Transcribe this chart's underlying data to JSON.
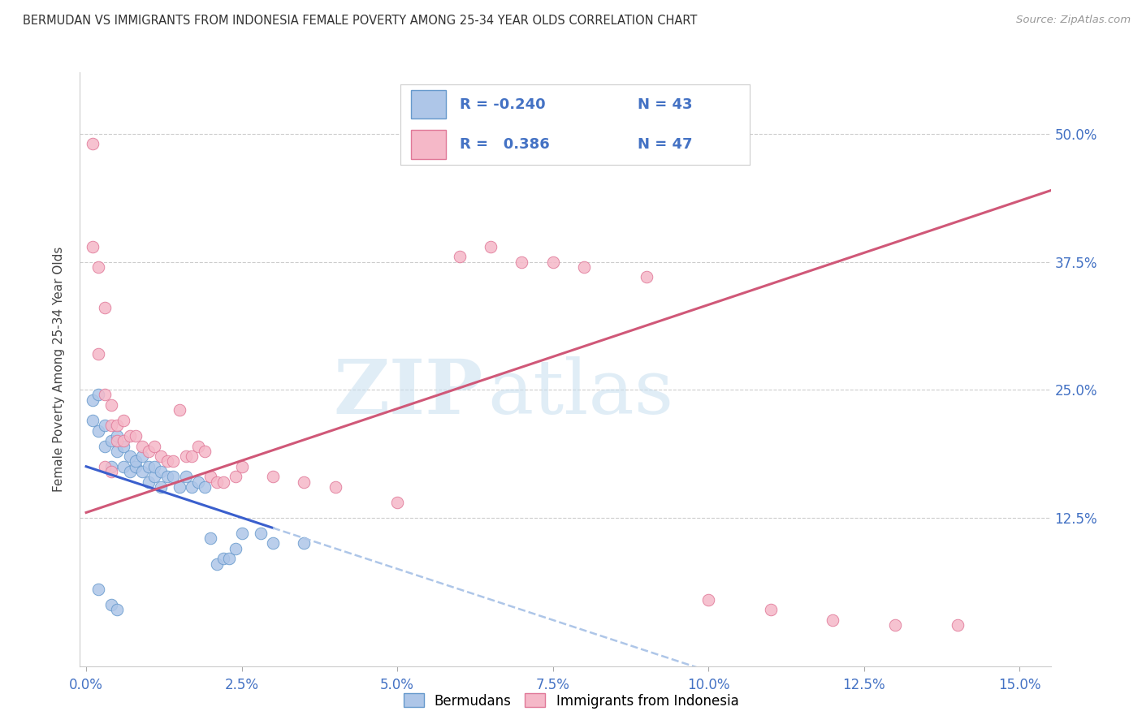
{
  "title": "BERMUDAN VS IMMIGRANTS FROM INDONESIA FEMALE POVERTY AMONG 25-34 YEAR OLDS CORRELATION CHART",
  "source": "Source: ZipAtlas.com",
  "ylabel": "Female Poverty Among 25-34 Year Olds",
  "x_ticklabels": [
    "0.0%",
    "2.5%",
    "5.0%",
    "7.5%",
    "10.0%",
    "12.5%",
    "15.0%"
  ],
  "x_ticks": [
    0.0,
    0.025,
    0.05,
    0.075,
    0.1,
    0.125,
    0.15
  ],
  "y_ticklabels": [
    "12.5%",
    "25.0%",
    "37.5%",
    "50.0%"
  ],
  "y_ticks": [
    0.125,
    0.25,
    0.375,
    0.5
  ],
  "xlim": [
    -0.001,
    0.155
  ],
  "ylim": [
    -0.02,
    0.56
  ],
  "bermudans_color": "#aec6e8",
  "bermudans_edge": "#6699cc",
  "indonesia_color": "#f5b8c8",
  "indonesia_edge": "#e07898",
  "blue_line_color": "#3a5fcd",
  "pink_line_color": "#d05878",
  "dashed_line_color": "#aec6e8",
  "watermark_zip": "ZIP",
  "watermark_atlas": "atlas",
  "legend_text_color": "#4472c4",
  "legend_border_color": "#cccccc",
  "bermudans_x": [
    0.001,
    0.001,
    0.002,
    0.002,
    0.003,
    0.003,
    0.004,
    0.004,
    0.005,
    0.005,
    0.006,
    0.006,
    0.007,
    0.007,
    0.008,
    0.008,
    0.009,
    0.009,
    0.01,
    0.01,
    0.011,
    0.011,
    0.012,
    0.012,
    0.013,
    0.014,
    0.015,
    0.016,
    0.017,
    0.018,
    0.019,
    0.02,
    0.021,
    0.022,
    0.023,
    0.024,
    0.025,
    0.028,
    0.03,
    0.002,
    0.004,
    0.005,
    0.035
  ],
  "bermudans_y": [
    0.22,
    0.24,
    0.21,
    0.245,
    0.195,
    0.215,
    0.175,
    0.2,
    0.19,
    0.205,
    0.175,
    0.195,
    0.17,
    0.185,
    0.175,
    0.18,
    0.17,
    0.185,
    0.16,
    0.175,
    0.165,
    0.175,
    0.155,
    0.17,
    0.165,
    0.165,
    0.155,
    0.165,
    0.155,
    0.16,
    0.155,
    0.105,
    0.08,
    0.085,
    0.085,
    0.095,
    0.11,
    0.11,
    0.1,
    0.055,
    0.04,
    0.035,
    0.1
  ],
  "indonesia_x": [
    0.001,
    0.001,
    0.002,
    0.002,
    0.003,
    0.003,
    0.004,
    0.004,
    0.005,
    0.005,
    0.006,
    0.006,
    0.007,
    0.008,
    0.009,
    0.01,
    0.011,
    0.012,
    0.013,
    0.014,
    0.015,
    0.016,
    0.017,
    0.018,
    0.019,
    0.02,
    0.021,
    0.022,
    0.024,
    0.025,
    0.003,
    0.004,
    0.03,
    0.035,
    0.04,
    0.05,
    0.06,
    0.065,
    0.07,
    0.075,
    0.08,
    0.09,
    0.1,
    0.11,
    0.12,
    0.13,
    0.14
  ],
  "indonesia_y": [
    0.49,
    0.39,
    0.37,
    0.285,
    0.33,
    0.245,
    0.235,
    0.215,
    0.2,
    0.215,
    0.2,
    0.22,
    0.205,
    0.205,
    0.195,
    0.19,
    0.195,
    0.185,
    0.18,
    0.18,
    0.23,
    0.185,
    0.185,
    0.195,
    0.19,
    0.165,
    0.16,
    0.16,
    0.165,
    0.175,
    0.175,
    0.17,
    0.165,
    0.16,
    0.155,
    0.14,
    0.38,
    0.39,
    0.375,
    0.375,
    0.37,
    0.36,
    0.045,
    0.035,
    0.025,
    0.02,
    0.02
  ]
}
